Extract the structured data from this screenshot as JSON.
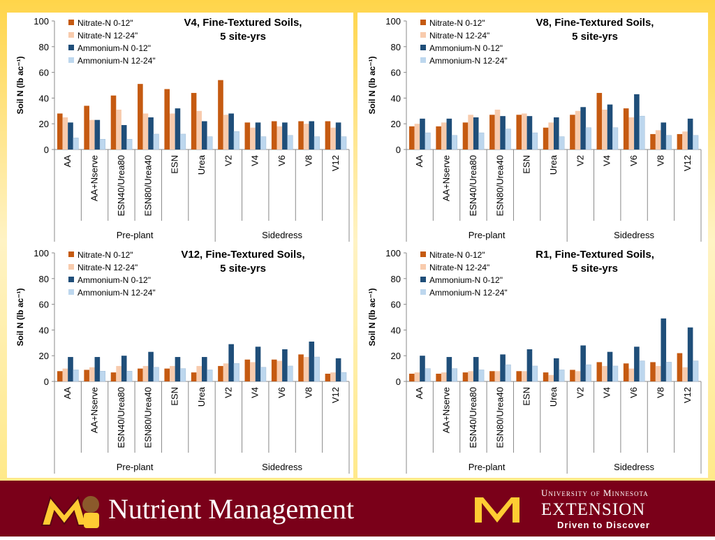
{
  "chart_data": [
    {
      "type": "bar",
      "title": [
        "V4, Fine-Textured Soils,",
        "5 site-yrs"
      ],
      "ylabel": "Soil N (lb ac⁻¹)",
      "groups": [
        {
          "name": "Pre-plant",
          "categories": [
            "AA",
            "AA+Nserve",
            "ESN40/Urea80",
            "ESN80/Urea40",
            "ESN",
            "Urea"
          ]
        },
        {
          "name": "Sidedress",
          "categories": [
            "V2",
            "V4",
            "V6",
            "V8",
            "V12"
          ]
        }
      ],
      "ylim": [
        0,
        100
      ],
      "yticks": [
        0,
        20,
        40,
        60,
        80,
        100
      ],
      "series": [
        {
          "name": "Nitrate-N 0-12\"",
          "color": "#c55a11",
          "values": [
            28,
            34,
            42,
            51,
            47,
            44,
            54,
            21,
            22,
            22,
            22
          ]
        },
        {
          "name": "Nitrate-N 12-24\"",
          "color": "#f8cbad",
          "values": [
            25,
            23,
            31,
            28,
            28,
            30,
            27,
            17,
            18,
            20,
            17
          ]
        },
        {
          "name": "Ammonium-N 0-12\"",
          "color": "#1f4e79",
          "values": [
            21,
            23,
            19,
            25,
            32,
            22,
            28,
            21,
            21,
            22,
            21
          ]
        },
        {
          "name": "Ammonium-N 12-24\"",
          "color": "#bdd7ee",
          "values": [
            9,
            8,
            8,
            12,
            12,
            10,
            14,
            10,
            11,
            10,
            10
          ]
        }
      ]
    },
    {
      "type": "bar",
      "title": [
        "V8, Fine-Textured Soils,",
        "5 site-yrs"
      ],
      "ylabel": "Soil N (lb ac⁻¹)",
      "groups": [
        {
          "name": "Pre-plant",
          "categories": [
            "AA",
            "AA+Nserve",
            "ESN40/Urea80",
            "ESN80/Urea40",
            "ESN",
            "Urea"
          ]
        },
        {
          "name": "Sidedress",
          "categories": [
            "V2",
            "V4",
            "V6",
            "V8",
            "V12"
          ]
        }
      ],
      "ylim": [
        0,
        100
      ],
      "yticks": [
        0,
        20,
        40,
        60,
        80,
        100
      ],
      "series": [
        {
          "name": "Nitrate-N 0-12\"",
          "color": "#c55a11",
          "values": [
            18,
            18,
            21,
            27,
            27,
            17,
            27,
            44,
            32,
            12,
            12
          ]
        },
        {
          "name": "Nitrate-N 12-24\"",
          "color": "#f8cbad",
          "values": [
            20,
            21,
            27,
            31,
            28,
            21,
            30,
            31,
            25,
            15,
            14
          ]
        },
        {
          "name": "Ammonium-N 0-12\"",
          "color": "#1f4e79",
          "values": [
            24,
            24,
            25,
            26,
            26,
            25,
            33,
            35,
            43,
            21,
            24
          ]
        },
        {
          "name": "Ammonium-N 12-24\"",
          "color": "#bdd7ee",
          "values": [
            13,
            11,
            13,
            16,
            13,
            10,
            17,
            17,
            26,
            11,
            11
          ]
        }
      ]
    },
    {
      "type": "bar",
      "title": [
        "V12, Fine-Textured Soils,",
        "5 site-yrs"
      ],
      "ylabel": "Soil N (lb ac⁻¹)",
      "groups": [
        {
          "name": "Pre-plant",
          "categories": [
            "AA",
            "AA+Nserve",
            "ESN40/Urea80",
            "ESN80/Urea40",
            "ESN",
            "Urea"
          ]
        },
        {
          "name": "Sidedress",
          "categories": [
            "V2",
            "V4",
            "V6",
            "V8",
            "V12"
          ]
        }
      ],
      "ylim": [
        0,
        100
      ],
      "yticks": [
        0,
        20,
        40,
        60,
        80,
        100
      ],
      "series": [
        {
          "name": "Nitrate-N 0-12\"",
          "color": "#c55a11",
          "values": [
            8,
            9,
            7,
            10,
            10,
            7,
            12,
            17,
            17,
            21,
            6
          ]
        },
        {
          "name": "Nitrate-N 12-24\"",
          "color": "#f8cbad",
          "values": [
            10,
            11,
            12,
            12,
            12,
            12,
            14,
            15,
            16,
            19,
            7
          ]
        },
        {
          "name": "Ammonium-N 0-12\"",
          "color": "#1f4e79",
          "values": [
            19,
            19,
            20,
            23,
            19,
            19,
            29,
            27,
            25,
            31,
            18
          ]
        },
        {
          "name": "Ammonium-N 12-24\"",
          "color": "#bdd7ee",
          "values": [
            9,
            8,
            8,
            11,
            10,
            9,
            14,
            11,
            12,
            19,
            7
          ]
        }
      ]
    },
    {
      "type": "bar",
      "title": [
        "R1, Fine-Textured Soils,",
        "5 site-yrs"
      ],
      "ylabel": "Soil N (lb ac⁻¹)",
      "groups": [
        {
          "name": "Pre-plant",
          "categories": [
            "AA",
            "AA+Nserve",
            "ESN40/Urea80",
            "ESN80/Urea40",
            "ESN",
            "Urea"
          ]
        },
        {
          "name": "Sidedress",
          "categories": [
            "V2",
            "V4",
            "V6",
            "V8",
            "V12"
          ]
        }
      ],
      "ylim": [
        0,
        100
      ],
      "yticks": [
        0,
        20,
        40,
        60,
        80,
        100
      ],
      "series": [
        {
          "name": "Nitrate-N 0-12\"",
          "color": "#c55a11",
          "values": [
            6,
            6,
            7,
            8,
            8,
            7,
            9,
            15,
            14,
            15,
            22
          ]
        },
        {
          "name": "Nitrate-N 12-24\"",
          "color": "#f8cbad",
          "values": [
            7,
            7,
            8,
            8,
            8,
            5,
            8,
            12,
            10,
            12,
            11
          ]
        },
        {
          "name": "Ammonium-N 0-12\"",
          "color": "#1f4e79",
          "values": [
            20,
            19,
            19,
            21,
            25,
            18,
            28,
            23,
            27,
            49,
            42
          ]
        },
        {
          "name": "Ammonium-N 12-24\"",
          "color": "#bdd7ee",
          "values": [
            10,
            10,
            9,
            13,
            12,
            9,
            13,
            12,
            16,
            15,
            16
          ]
        }
      ]
    }
  ],
  "footer": {
    "title": "Nutrient Management",
    "university": "University of Minnesota",
    "unit": "EXTENSION",
    "tagline": "Driven to Discover"
  }
}
